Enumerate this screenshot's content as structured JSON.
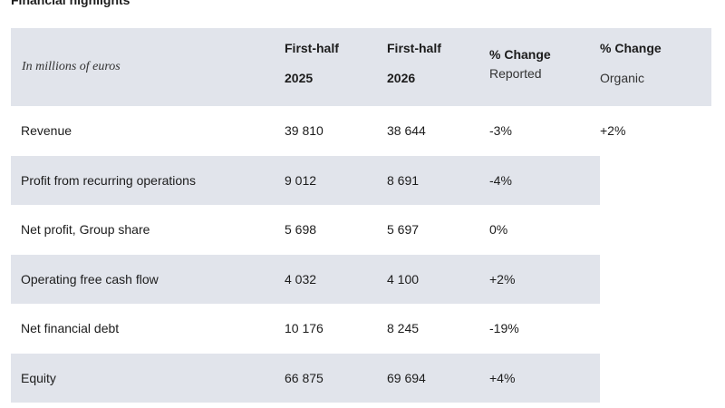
{
  "section_title": "Financial highlights",
  "header": {
    "unit_label": "In millions of euros",
    "columns": [
      {
        "line1": "First-half",
        "line2": "2025"
      },
      {
        "line1": "First-half",
        "line2": "2026"
      },
      {
        "line1": "% Change",
        "line2": "Reported"
      },
      {
        "line1": "% Change",
        "line2": "Organic"
      }
    ]
  },
  "rows": [
    {
      "label": "Revenue",
      "h1_2025": "39 810",
      "h1_2026": "38 644",
      "change_reported": "-3%",
      "change_organic": "+2%"
    },
    {
      "label": "Profit from recurring operations",
      "h1_2025": "9 012",
      "h1_2026": "8 691",
      "change_reported": "-4%",
      "change_organic": ""
    },
    {
      "label": "Net profit, Group share",
      "h1_2025": "5 698",
      "h1_2026": "5 697",
      "change_reported": "0%",
      "change_organic": ""
    },
    {
      "label": "Operating free cash flow",
      "h1_2025": "4 032",
      "h1_2026": "4 100",
      "change_reported": "+2%",
      "change_organic": ""
    },
    {
      "label": "Net financial debt",
      "h1_2025": "10 176",
      "h1_2026": "8 245",
      "change_reported": "-19%",
      "change_organic": ""
    },
    {
      "label": "Equity",
      "h1_2025": "66 875",
      "h1_2026": "69 694",
      "change_reported": "+4%",
      "change_organic": ""
    }
  ]
}
